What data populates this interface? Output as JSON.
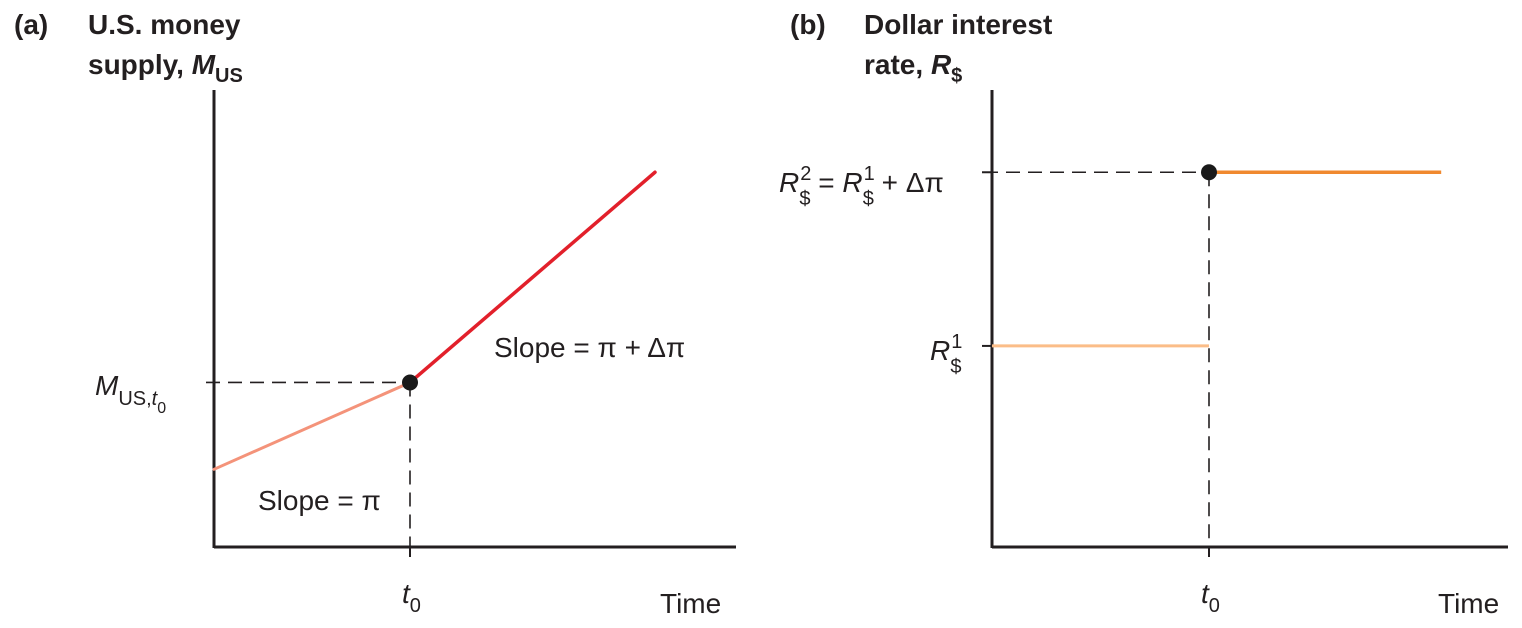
{
  "panels": {
    "a": {
      "tag": "(a)",
      "title_line1": "U.S. money",
      "title_line2": "supply, ",
      "title_var": "M",
      "title_sub": "US",
      "x_label": "Time",
      "t_label": "t",
      "t_sub": "0",
      "y_label_var": "M",
      "y_label_sub1": "US,",
      "y_label_sub_t": "t",
      "y_label_sub_0": "0",
      "slope_before": "Slope = π",
      "slope_after": "Slope = π + Δπ"
    },
    "b": {
      "tag": "(b)",
      "title_line1": "Dollar interest",
      "title_line2": "rate, ",
      "title_var": "R",
      "title_sub": "$",
      "x_label": "Time",
      "t_label": "t",
      "t_sub": "0",
      "r1_var": "R",
      "r1_sup": "1",
      "r1_sub": "$",
      "r2_var": "R",
      "r2_sup": "2",
      "r2_sub": "$",
      "r2_eq": " = ",
      "r2_rhs_var": "R",
      "r2_rhs_sup": "1",
      "r2_rhs_sub": "$",
      "r2_plus": " + Δπ"
    }
  },
  "colors": {
    "axis": "#231f20",
    "line_before_a": "#f4937a",
    "line_after_a": "#e2202b",
    "line_before_b": "#fbbd88",
    "line_after_b": "#f0892f",
    "dot": "#1a1a1a"
  },
  "chart_data": [
    {
      "type": "line",
      "x_axis": "Time",
      "y_axis": "M_US",
      "x_mark": "t0",
      "series": [
        {
          "values": [
            [
              0,
              0.17
            ],
            [
              1,
              0.36
            ]
          ]
        },
        {
          "values": [
            [
              1,
              0.36
            ],
            [
              2.25,
              0.82
            ]
          ]
        }
      ],
      "breakpoint": {
        "x": 1,
        "y": 0.36
      },
      "xlim": [
        0,
        2.7
      ],
      "ylim": [
        0,
        1
      ]
    },
    {
      "type": "line",
      "x_axis": "Time",
      "y_axis": "R_$",
      "x_mark": "t0",
      "series": [
        {
          "values": [
            [
              0,
              0.44
            ],
            [
              1,
              0.44
            ]
          ]
        },
        {
          "values": [
            [
              1,
              0.82
            ],
            [
              1.06,
              0.82
            ],
            [
              2.07,
              0.82
            ]
          ]
        }
      ],
      "breakpoint": {
        "x": 1,
        "y": 0.82
      },
      "xlim": [
        0,
        2.35
      ],
      "ylim": [
        0,
        1
      ]
    }
  ]
}
